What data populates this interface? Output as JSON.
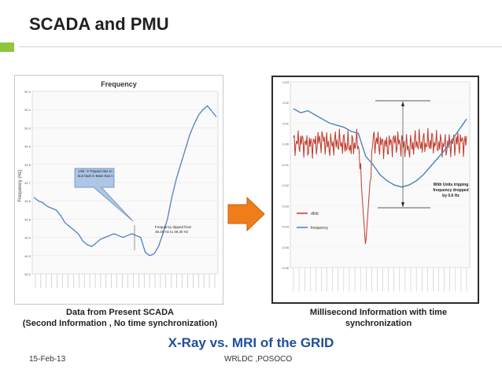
{
  "slide": {
    "title": "SCADA and PMU",
    "headline": "X-Ray vs. MRI of the GRID",
    "footer_date": "15-Feb-13",
    "footer_org": "WRLDC ,POSOCO",
    "accent_color": "#8dc63f",
    "headline_color": "#1f4e9a",
    "arrow_color": "#f07c1a"
  },
  "left": {
    "caption_line1": "Data from Present SCADA",
    "caption_line2": "(Second Information , No time synchronization)",
    "chart_title": "Frequency",
    "ylabel": "Frequency (Hz)",
    "callout": "Unit -3 Tripped due to bus fault in Main Bus-I",
    "annotation": "Frequency dipped from 49.40 Hz to 49.30 Hz"
  },
  "right": {
    "caption_line1": "Millisecond Information with time",
    "caption_line2": "synchronization",
    "legend_dfdt": "df/dt",
    "legend_freq": "frequency",
    "annotation": "With Units tripping frequency dropped by 0.6 Hz"
  },
  "chart_data": [
    {
      "type": "line",
      "title": "Frequency",
      "ylabel": "Frequency (Hz)",
      "ylim": [
        49.2,
        50.2
      ],
      "series": [
        {
          "values": [
            49.62,
            49.6,
            49.59,
            49.57,
            49.56,
            49.55,
            49.52,
            49.48,
            49.46,
            49.44,
            49.42,
            49.38,
            49.36,
            49.35,
            49.37,
            49.39,
            49.4,
            49.41,
            49.42,
            49.41,
            49.4,
            49.41,
            49.42,
            49.41,
            49.4,
            49.32,
            49.3,
            49.31,
            49.35,
            49.42,
            49.5,
            49.62,
            49.72,
            49.8,
            49.88,
            49.96,
            50.02,
            50.07,
            50.1,
            50.12,
            50.09,
            50.06
          ]
        }
      ]
    },
    {
      "type": "line",
      "ylim": [
        -0.06,
        0.03
      ],
      "series": [
        {
          "name": "df/dt",
          "values": [
            0.0,
            0.001,
            -0.001,
            0.0,
            0.002,
            -0.001,
            0.001,
            0.0,
            -0.001,
            0.001,
            -0.05,
            0.002,
            0.0,
            -0.001,
            0.001,
            0.0,
            -0.002,
            0.001,
            0.0,
            0.001,
            0.0,
            -0.001,
            0.0,
            0.001,
            0.0
          ]
        },
        {
          "name": "frequency",
          "values": [
            0.017,
            0.015,
            0.016,
            0.014,
            0.012,
            0.01,
            0.009,
            0.008,
            0.006,
            0.005,
            -0.006,
            -0.01,
            -0.015,
            -0.018,
            -0.02,
            -0.021,
            -0.02,
            -0.018,
            -0.015,
            -0.011,
            -0.007,
            -0.003,
            0.002,
            0.007,
            0.012
          ]
        }
      ]
    }
  ]
}
